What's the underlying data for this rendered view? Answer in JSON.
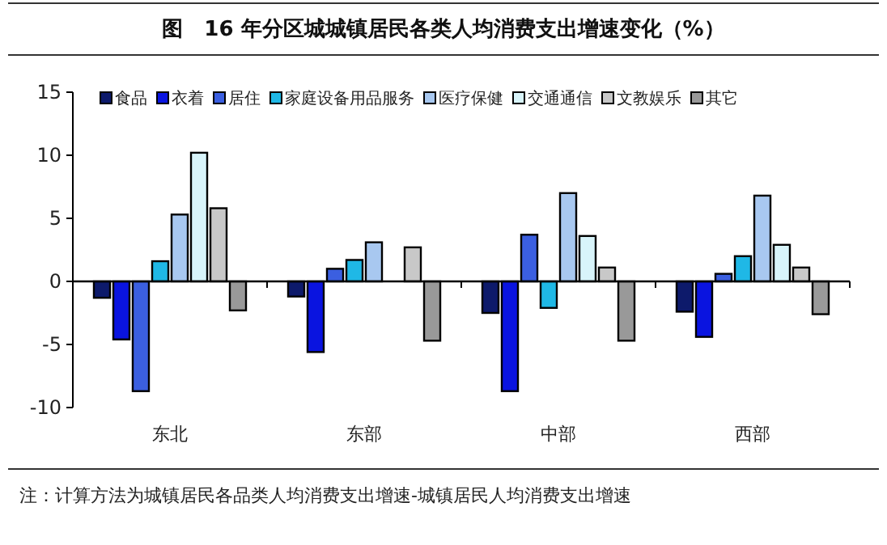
{
  "chart_data": {
    "type": "bar",
    "title": "图　16 年分区城城镇居民各类人均消费支出增速变化（%）",
    "categories": [
      "东北",
      "东部",
      "中部",
      "西部"
    ],
    "series": [
      {
        "name": "食品",
        "color": "#0d1a6b",
        "values": [
          -1.3,
          -1.2,
          -2.5,
          -2.4
        ]
      },
      {
        "name": "衣着",
        "color": "#0a14e0",
        "values": [
          -4.6,
          -5.6,
          -8.7,
          -4.4
        ]
      },
      {
        "name": "居住",
        "color": "#3b5fe0",
        "values": [
          -8.7,
          1.0,
          3.7,
          0.6
        ]
      },
      {
        "name": "家庭设备用品服务",
        "color": "#1fb8e6",
        "values": [
          1.6,
          1.7,
          -2.1,
          2.0
        ]
      },
      {
        "name": "医疗保健",
        "color": "#a8c8f0",
        "values": [
          5.3,
          3.1,
          7.0,
          6.8
        ]
      },
      {
        "name": "交通通信",
        "color": "#d8f4fa",
        "values": [
          10.2,
          0,
          3.6,
          2.9
        ]
      },
      {
        "name": "文教娱乐",
        "color": "#c8c8c8",
        "values": [
          5.8,
          2.7,
          1.1,
          1.1
        ]
      },
      {
        "name": "其它",
        "color": "#999999",
        "values": [
          -2.3,
          -4.7,
          -4.7,
          -2.6
        ]
      }
    ],
    "ylim": [
      -10,
      15
    ],
    "yticks": [
      -10,
      -5,
      0,
      5,
      10,
      15
    ],
    "legend": "top",
    "annotations": [
      "注：计算方法为城镇居民各品类人均消费支出增速-城镇居民人均消费支出增速"
    ]
  }
}
